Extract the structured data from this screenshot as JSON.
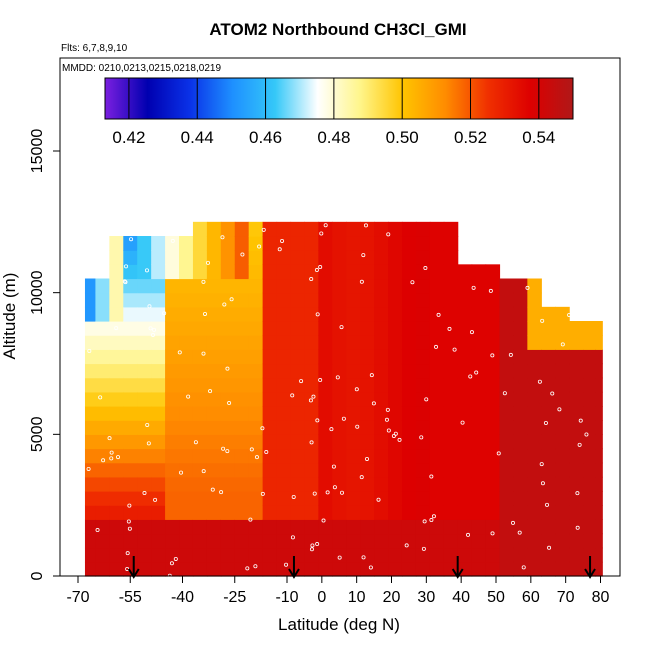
{
  "chart_data": {
    "type": "heatmap",
    "title": "ATOM2 Northbound CH3Cl_GMI",
    "flights_note": "Flts: 6,7,8,9,10",
    "date_note": "MMDD: 0210,0213,0215,0218,0219",
    "xlabel": "Latitude (deg N)",
    "ylabel": "Altitude (m)",
    "xlim": [
      -70,
      85
    ],
    "ylim": [
      0,
      17500
    ],
    "x_ticks": [
      -70,
      -55,
      -40,
      -25,
      -10,
      0,
      10,
      20,
      30,
      40,
      50,
      60,
      70,
      80
    ],
    "y_ticks": [
      0,
      5000,
      10000,
      15000
    ],
    "colorbar": {
      "range": [
        0.413,
        0.55
      ],
      "ticks": [
        0.42,
        0.44,
        0.46,
        0.48,
        0.5,
        0.52,
        0.54
      ],
      "tick_labels": [
        "0.42",
        "0.44",
        "0.46",
        "0.48",
        "0.50",
        "0.52",
        "0.54"
      ],
      "colors": [
        "#7b1fe0",
        "#0000b0",
        "#0a32e8",
        "#1e90ff",
        "#35c8f8",
        "#ffffff",
        "#fff58a",
        "#ffc400",
        "#ff8c00",
        "#f03000",
        "#dd0000",
        "#b01818"
      ]
    },
    "latitude_bins": [
      -67,
      -63,
      -59,
      -55,
      -51,
      -47,
      -43,
      -39,
      -35,
      -31,
      -27,
      -23,
      -19,
      -15,
      -11,
      -7,
      -3,
      1,
      5,
      9,
      13,
      17,
      21,
      25,
      29,
      33,
      37,
      41,
      45,
      49,
      53,
      57,
      61,
      65,
      69,
      73,
      77,
      80
    ],
    "altitude_bins": [
      500,
      1500,
      2500,
      3500,
      4500,
      5500,
      6500,
      7500,
      8500,
      9500,
      10500,
      11500,
      12500
    ],
    "surface_arrows_lat": [
      -54,
      -8,
      39,
      77
    ],
    "curtain_description_values": {
      "southern_lower": 0.53,
      "southern_mid": 0.52,
      "southern_upper_edge": 0.44,
      "equatorial": 0.535,
      "northern_low": 0.545
    }
  }
}
